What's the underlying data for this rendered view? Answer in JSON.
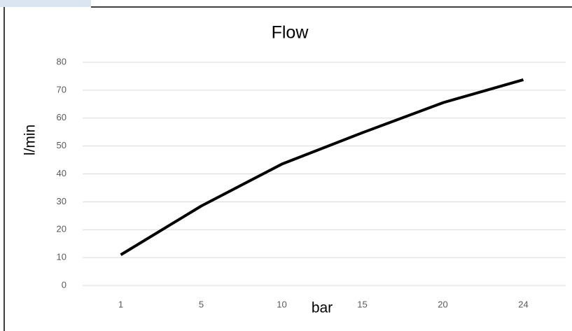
{
  "chart_data": {
    "type": "line",
    "title": "Flow",
    "x_label": "bar",
    "y_label": "l/min",
    "categories": [
      "1",
      "5",
      "10",
      "15",
      "20",
      "24"
    ],
    "series": [
      {
        "name": "Flow",
        "color": "#000000",
        "values": [
          11,
          28.5,
          43.5,
          54.75,
          65.5,
          73.75
        ]
      }
    ],
    "ylim": [
      0,
      80
    ],
    "yticks": [
      0,
      10,
      20,
      30,
      40,
      50,
      60,
      70,
      80
    ],
    "grid": true
  }
}
